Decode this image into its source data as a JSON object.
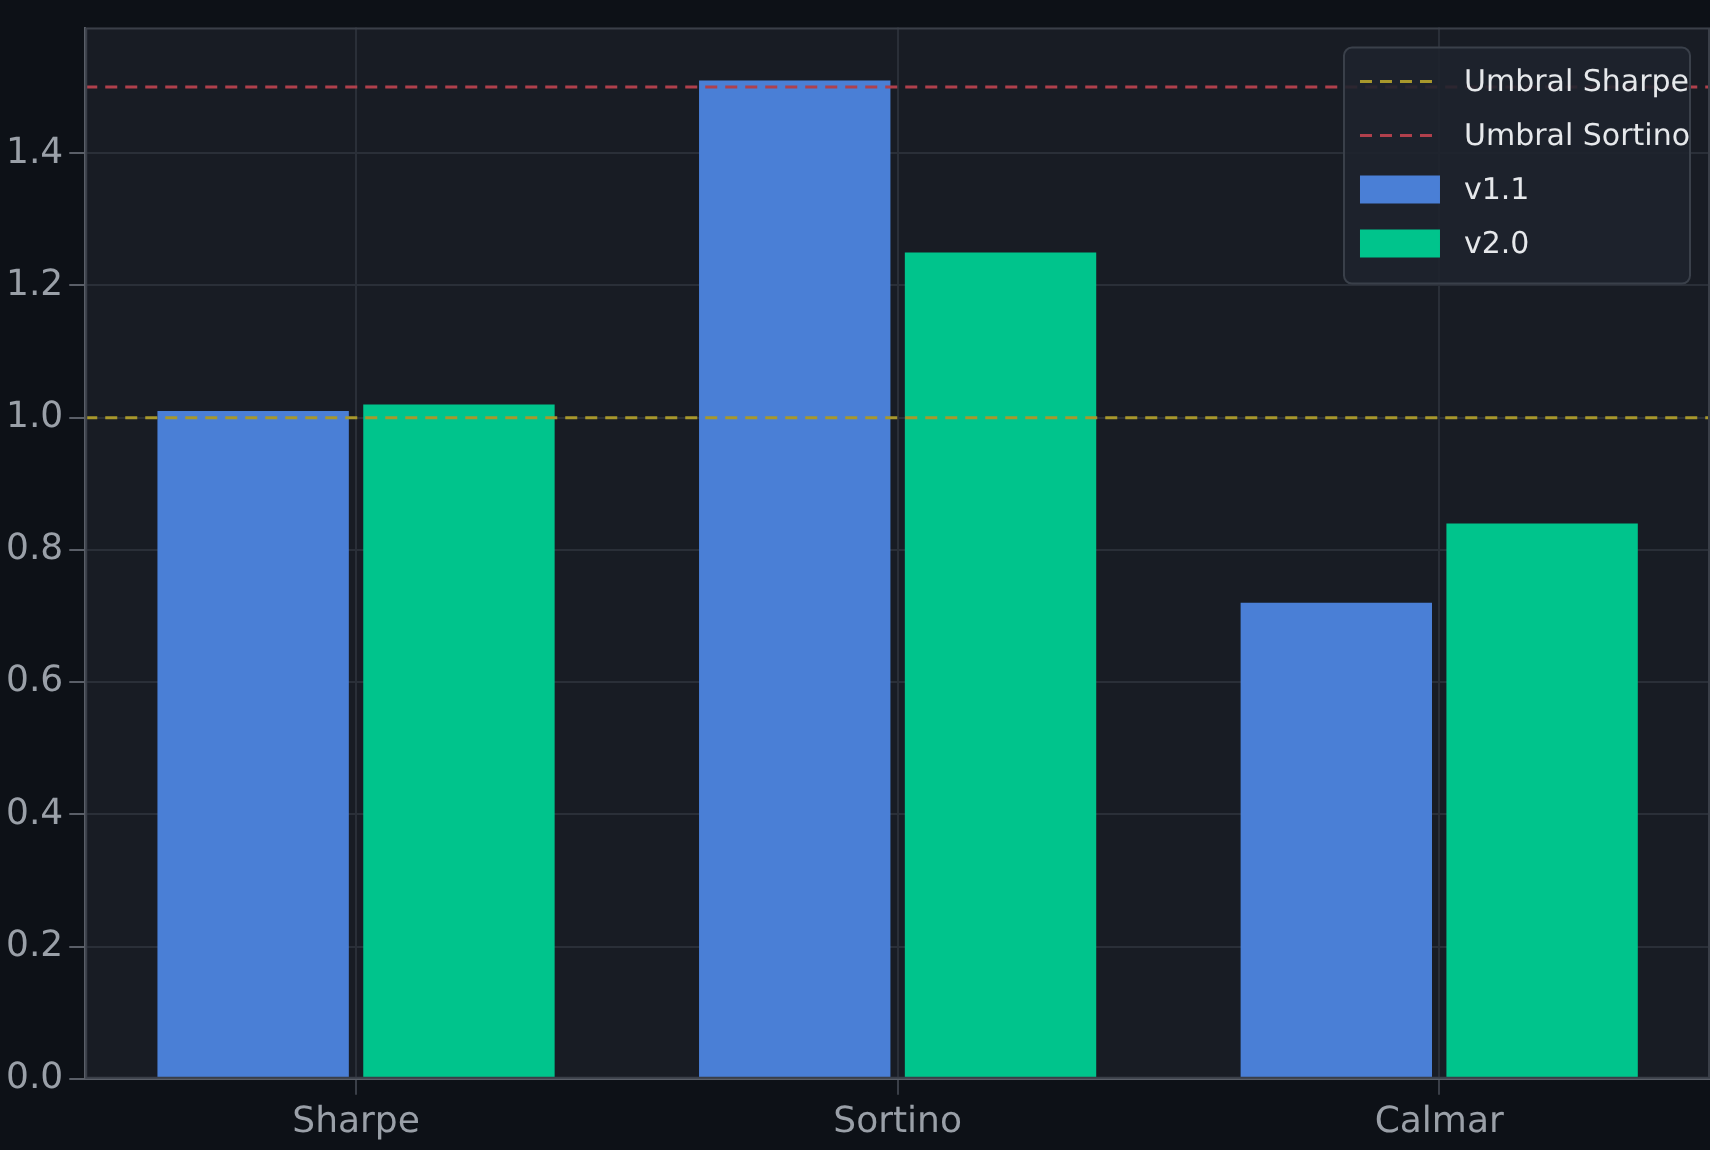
{
  "chart_data": {
    "type": "bar",
    "categories": [
      "Sharpe",
      "Sortino",
      "Calmar"
    ],
    "series": [
      {
        "name": "v1.1",
        "color": "#4a7fd6",
        "values": [
          1.01,
          1.51,
          0.72
        ]
      },
      {
        "name": "v2.0",
        "color": "#00c48c",
        "values": [
          1.02,
          1.25,
          0.84
        ]
      }
    ],
    "ylim": [
      0,
      1.59
    ],
    "yticks": [
      {
        "value": 0,
        "label": "0.0"
      },
      {
        "value": 0.2,
        "label": "0.2"
      },
      {
        "value": 0.4,
        "label": "0.4"
      },
      {
        "value": 0.6,
        "label": "0.6"
      },
      {
        "value": 0.8,
        "label": "0.8"
      },
      {
        "value": 1,
        "label": "1.0"
      },
      {
        "value": 1.2,
        "label": "1.2"
      },
      {
        "value": 1.4,
        "label": "1.4"
      }
    ],
    "ref_lines": [
      {
        "axis": "y",
        "value": 1.0,
        "label": "Umbral Sharpe",
        "color": "#a8982c",
        "line_style": "dashed"
      },
      {
        "axis": "y",
        "value": 1.5,
        "label": "Umbral Sortino",
        "color": "#b0404c",
        "line_style": "dashed"
      }
    ],
    "grid": true,
    "legend": "top right"
  }
}
